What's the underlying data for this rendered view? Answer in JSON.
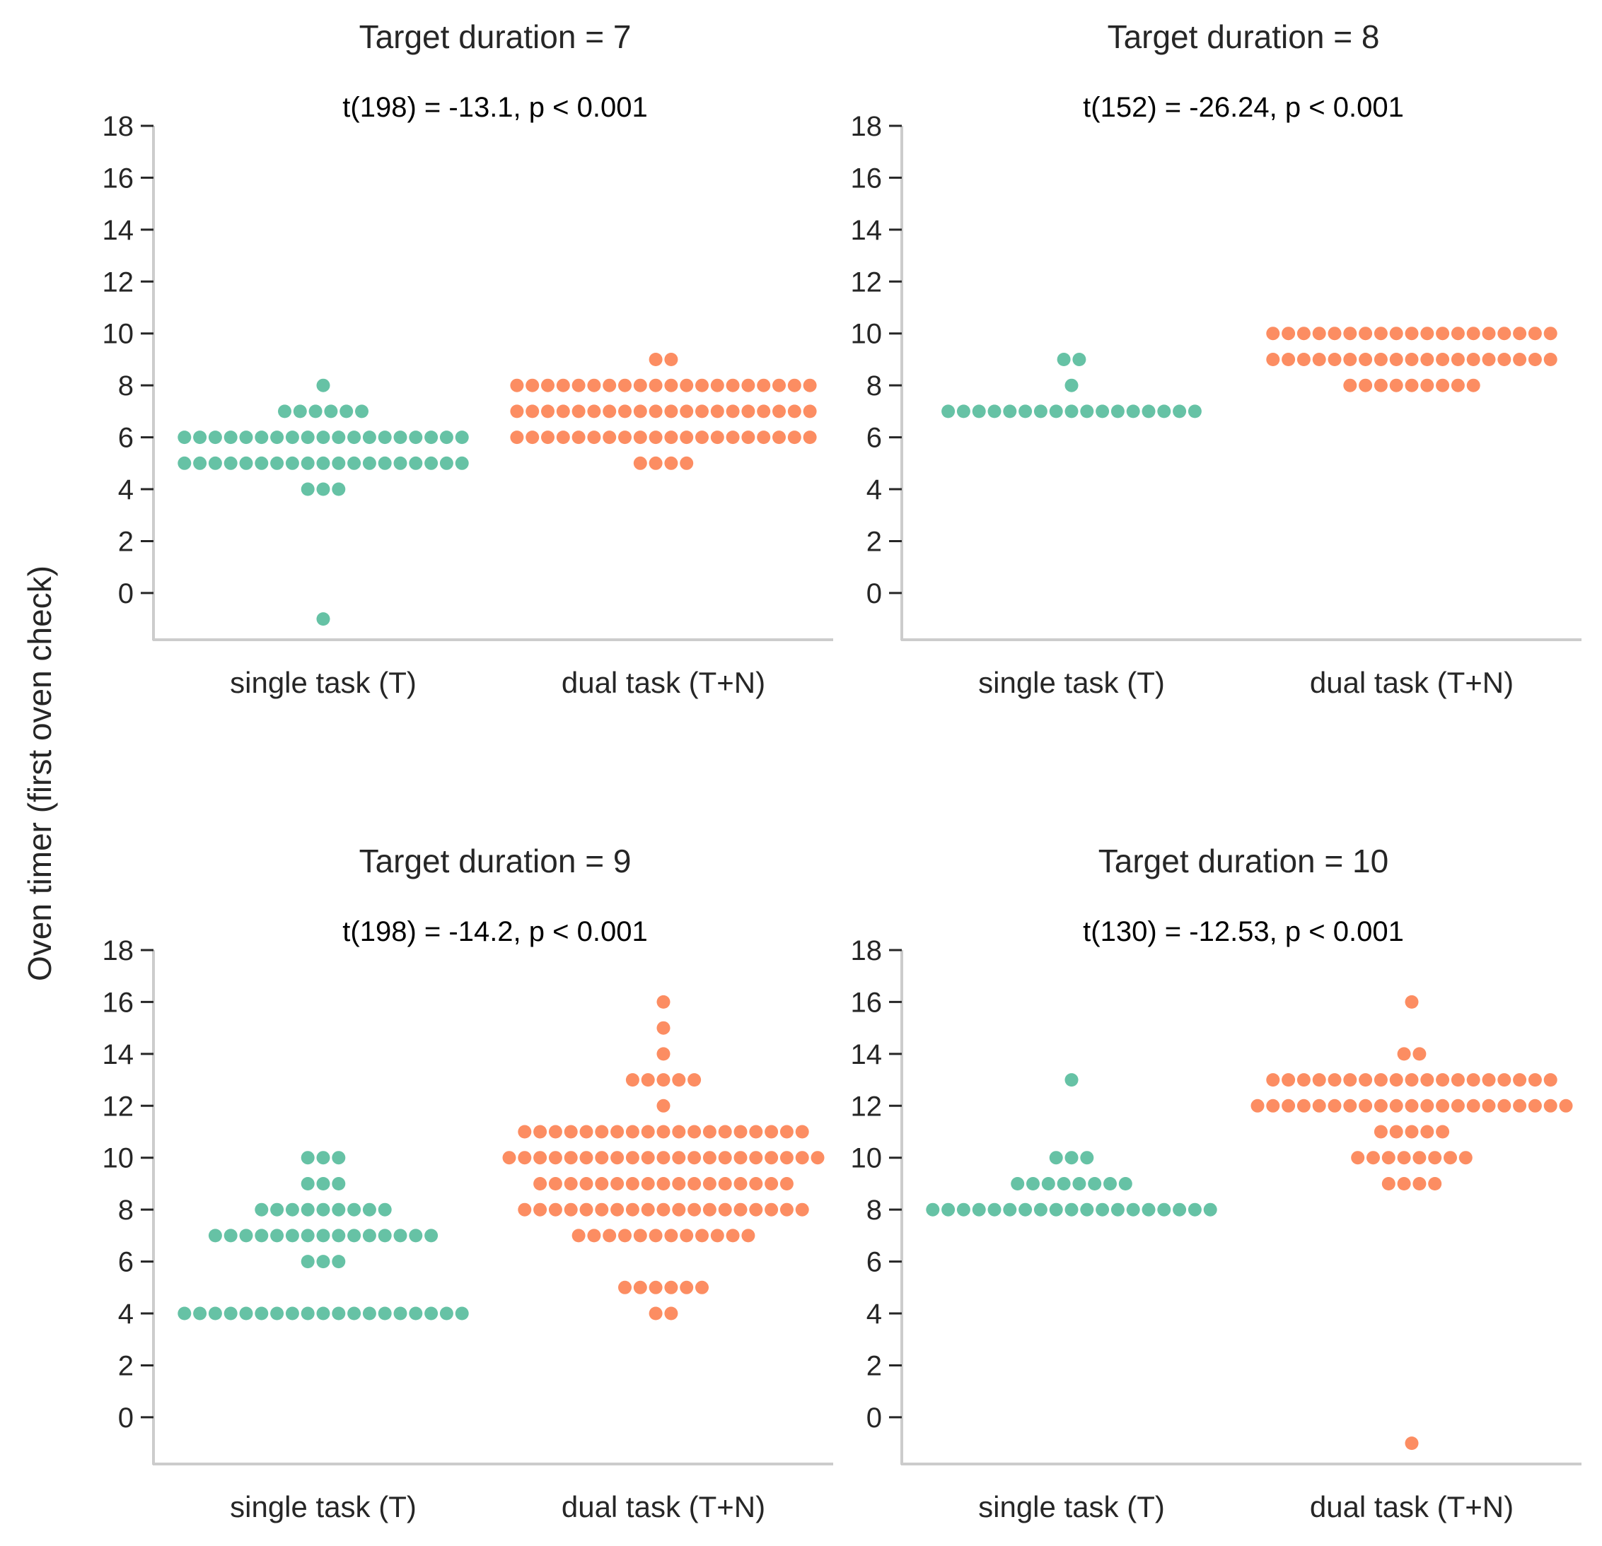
{
  "figure": {
    "ylabel": "Oven timer (first oven check)",
    "colors": {
      "single": "#66c2a5",
      "dual": "#fc8d62",
      "axis": "#cccccc",
      "text": "#262626"
    }
  },
  "chart_data": [
    {
      "type": "scatter",
      "kind": "swarm",
      "title": "Target duration = 7",
      "annotation": "t(198) = -13.1, p < 0.001",
      "categories": [
        "single task (T)",
        "dual task (T+N)"
      ],
      "yticks": [
        0,
        2,
        4,
        6,
        8,
        10,
        12,
        14,
        16,
        18
      ],
      "ylim": [
        -1.8,
        18
      ],
      "series": [
        {
          "name": "single task (T)",
          "counts": {
            "-1": 1,
            "4": 3,
            "5": 19,
            "6": 19,
            "7": 6,
            "8": 1
          }
        },
        {
          "name": "dual task (T+N)",
          "counts": {
            "5": 4,
            "6": 20,
            "7": 20,
            "8": 20,
            "9": 2
          }
        }
      ]
    },
    {
      "type": "scatter",
      "kind": "swarm",
      "title": "Target duration = 8",
      "annotation": "t(152) = -26.24, p < 0.001",
      "categories": [
        "single task (T)",
        "dual task (T+N)"
      ],
      "yticks": [
        0,
        2,
        4,
        6,
        8,
        10,
        12,
        14,
        16,
        18
      ],
      "ylim": [
        -1.8,
        18
      ],
      "series": [
        {
          "name": "single task (T)",
          "counts": {
            "7": 17,
            "8": 1,
            "9": 2
          }
        },
        {
          "name": "dual task (T+N)",
          "counts": {
            "8": 9,
            "9": 19,
            "10": 19
          }
        }
      ]
    },
    {
      "type": "scatter",
      "kind": "swarm",
      "title": "Target duration = 9",
      "annotation": "t(198) = -14.2, p < 0.001",
      "categories": [
        "single task (T)",
        "dual task (T+N)"
      ],
      "yticks": [
        0,
        2,
        4,
        6,
        8,
        10,
        12,
        14,
        16,
        18
      ],
      "ylim": [
        -1.8,
        18
      ],
      "series": [
        {
          "name": "single task (T)",
          "counts": {
            "4": 19,
            "6": 3,
            "7": 15,
            "8": 9,
            "9": 3,
            "10": 3
          }
        },
        {
          "name": "dual task (T+N)",
          "counts": {
            "4": 2,
            "5": 6,
            "7": 12,
            "8": 19,
            "9": 17,
            "10": 21,
            "11": 19,
            "12": 1,
            "13": 5,
            "14": 1,
            "15": 1,
            "16": 1
          }
        }
      ]
    },
    {
      "type": "scatter",
      "kind": "swarm",
      "title": "Target duration = 10",
      "annotation": "t(130) = -12.53, p < 0.001",
      "categories": [
        "single task (T)",
        "dual task (T+N)"
      ],
      "yticks": [
        0,
        2,
        4,
        6,
        8,
        10,
        12,
        14,
        16,
        18
      ],
      "ylim": [
        -1.8,
        18
      ],
      "series": [
        {
          "name": "single task (T)",
          "counts": {
            "8": 19,
            "9": 8,
            "10": 3,
            "13": 1
          }
        },
        {
          "name": "dual task (T+N)",
          "counts": {
            "-1": 1,
            "9": 4,
            "10": 8,
            "11": 5,
            "12": 21,
            "13": 19,
            "14": 2,
            "16": 1
          }
        }
      ]
    }
  ]
}
